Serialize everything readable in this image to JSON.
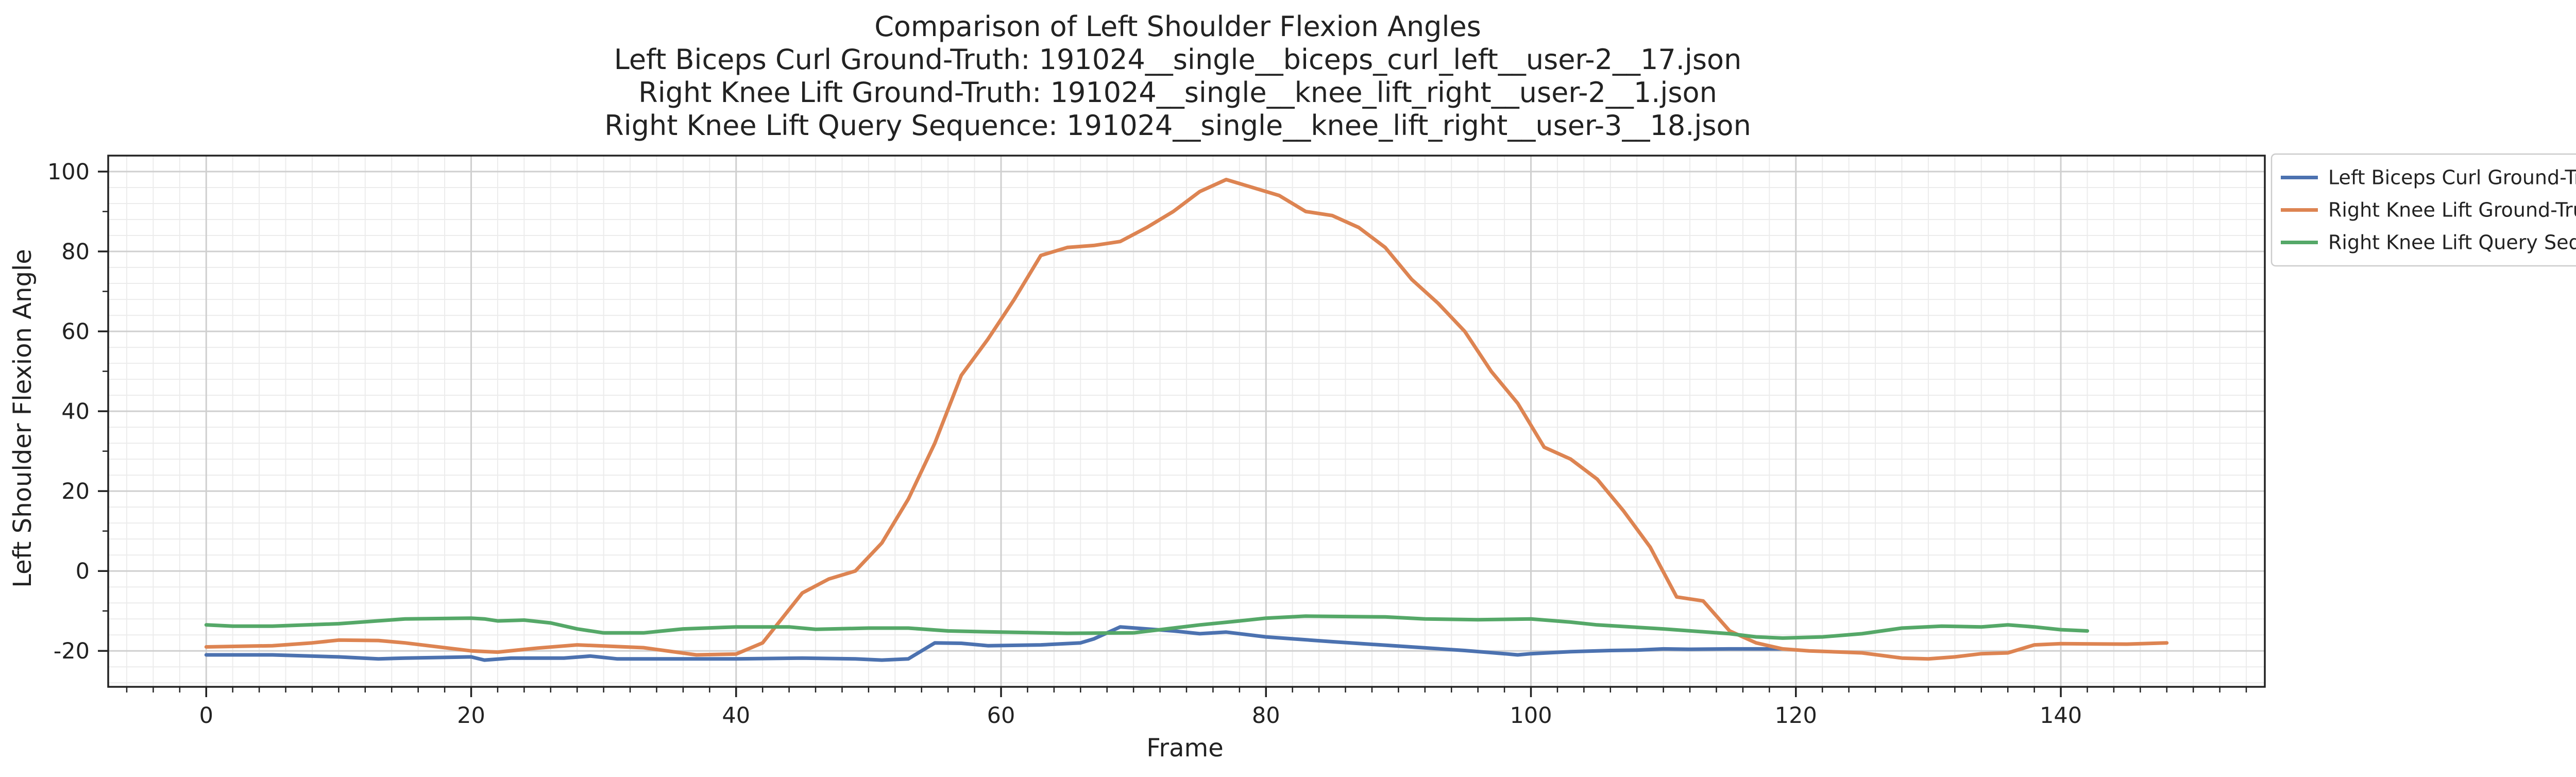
{
  "chart_data": {
    "type": "line",
    "title": "Comparison of Left Shoulder Flexion Angles",
    "subtitles": [
      "Left Biceps Curl Ground-Truth: 191024__single__biceps_curl_left__user-2__17.json",
      "Right Knee Lift Ground-Truth: 191024__single__knee_lift_right__user-2__1.json",
      "Right Knee Lift Query Sequence: 191024__single__knee_lift_right__user-3__18.json"
    ],
    "xlabel": "Frame",
    "ylabel": "Left Shoulder Flexion Angle",
    "xlim": [
      -7.4,
      155.4
    ],
    "ylim": [
      -29,
      104
    ],
    "xticks": [
      0,
      20,
      40,
      60,
      80,
      100,
      120,
      140
    ],
    "yticks": [
      -20,
      0,
      20,
      40,
      60,
      80,
      100
    ],
    "grid": true,
    "legend_position": "outside upper right",
    "series": [
      {
        "name": "Left Biceps Curl Ground-Truth",
        "color": "#4c72b0",
        "points": [
          [
            0,
            -21
          ],
          [
            5,
            -21
          ],
          [
            10,
            -21.5
          ],
          [
            13,
            -22
          ],
          [
            15,
            -21.8
          ],
          [
            20,
            -21.5
          ],
          [
            21,
            -22.3
          ],
          [
            23,
            -21.8
          ],
          [
            27,
            -21.8
          ],
          [
            29,
            -21.3
          ],
          [
            31,
            -22
          ],
          [
            35,
            -22
          ],
          [
            40,
            -22
          ],
          [
            45,
            -21.8
          ],
          [
            49,
            -22
          ],
          [
            51,
            -22.3
          ],
          [
            53,
            -22
          ],
          [
            55,
            -18
          ],
          [
            57,
            -18.1
          ],
          [
            59,
            -18.7
          ],
          [
            63,
            -18.5
          ],
          [
            66,
            -18
          ],
          [
            67,
            -17
          ],
          [
            69,
            -14
          ],
          [
            71,
            -14.5
          ],
          [
            73,
            -15
          ],
          [
            75,
            -15.7
          ],
          [
            77,
            -15.3
          ],
          [
            80,
            -16.5
          ],
          [
            85,
            -17.7
          ],
          [
            90,
            -18.8
          ],
          [
            95,
            -19.9
          ],
          [
            98,
            -20.7
          ],
          [
            99,
            -21
          ],
          [
            100,
            -20.7
          ],
          [
            103,
            -20.2
          ],
          [
            106,
            -19.9
          ],
          [
            108,
            -19.8
          ],
          [
            110,
            -19.5
          ],
          [
            112,
            -19.6
          ],
          [
            115,
            -19.5
          ],
          [
            119,
            -19.5
          ]
        ]
      },
      {
        "name": "Right Knee Lift Ground-Truth",
        "color": "#dd8452",
        "points": [
          [
            0,
            -19
          ],
          [
            5,
            -18.7
          ],
          [
            8,
            -18
          ],
          [
            10,
            -17.3
          ],
          [
            13,
            -17.4
          ],
          [
            15,
            -18
          ],
          [
            20,
            -20
          ],
          [
            22,
            -20.3
          ],
          [
            25,
            -19.3
          ],
          [
            28,
            -18.5
          ],
          [
            33,
            -19.2
          ],
          [
            37,
            -21
          ],
          [
            40,
            -20.8
          ],
          [
            42,
            -18
          ],
          [
            45,
            -5.5
          ],
          [
            47,
            -2
          ],
          [
            49,
            0
          ],
          [
            51,
            7
          ],
          [
            53,
            18
          ],
          [
            55,
            32
          ],
          [
            57,
            49
          ],
          [
            59,
            58
          ],
          [
            61,
            68
          ],
          [
            63,
            79
          ],
          [
            65,
            81
          ],
          [
            67,
            81.5
          ],
          [
            69,
            82.5
          ],
          [
            71,
            86
          ],
          [
            73,
            90
          ],
          [
            75,
            95
          ],
          [
            77,
            98
          ],
          [
            79,
            96
          ],
          [
            81,
            94
          ],
          [
            83,
            90
          ],
          [
            85,
            89
          ],
          [
            87,
            86
          ],
          [
            89,
            81
          ],
          [
            91,
            73
          ],
          [
            93,
            67
          ],
          [
            95,
            60
          ],
          [
            97,
            50
          ],
          [
            99,
            42
          ],
          [
            101,
            31
          ],
          [
            103,
            28
          ],
          [
            105,
            23
          ],
          [
            107,
            15
          ],
          [
            109,
            6
          ],
          [
            111,
            -6.5
          ],
          [
            113,
            -7.5
          ],
          [
            115,
            -15
          ],
          [
            117,
            -18
          ],
          [
            119,
            -19.5
          ],
          [
            121,
            -20
          ],
          [
            125,
            -20.5
          ],
          [
            128,
            -21.8
          ],
          [
            130,
            -22
          ],
          [
            132,
            -21.5
          ],
          [
            134,
            -20.7
          ],
          [
            136,
            -20.5
          ],
          [
            138,
            -18.5
          ],
          [
            140,
            -18.2
          ],
          [
            145,
            -18.3
          ],
          [
            148,
            -18
          ]
        ]
      },
      {
        "name": "Right Knee Lift Query Sequence",
        "color": "#55a868",
        "points": [
          [
            0,
            -13.5
          ],
          [
            2,
            -13.8
          ],
          [
            5,
            -13.8
          ],
          [
            10,
            -13.2
          ],
          [
            15,
            -12
          ],
          [
            20,
            -11.8
          ],
          [
            21,
            -12
          ],
          [
            22,
            -12.5
          ],
          [
            24,
            -12.3
          ],
          [
            26,
            -13
          ],
          [
            28,
            -14.5
          ],
          [
            30,
            -15.5
          ],
          [
            33,
            -15.5
          ],
          [
            36,
            -14.5
          ],
          [
            40,
            -14
          ],
          [
            44,
            -14
          ],
          [
            46,
            -14.6
          ],
          [
            50,
            -14.3
          ],
          [
            53,
            -14.3
          ],
          [
            56,
            -15
          ],
          [
            60,
            -15.3
          ],
          [
            65,
            -15.6
          ],
          [
            70,
            -15.5
          ],
          [
            75,
            -13.5
          ],
          [
            78,
            -12.5
          ],
          [
            80,
            -11.8
          ],
          [
            83,
            -11.3
          ],
          [
            89,
            -11.5
          ],
          [
            92,
            -12
          ],
          [
            96,
            -12.2
          ],
          [
            100,
            -12
          ],
          [
            103,
            -12.8
          ],
          [
            105,
            -13.5
          ],
          [
            110,
            -14.5
          ],
          [
            115,
            -15.7
          ],
          [
            117,
            -16.5
          ],
          [
            119,
            -16.8
          ],
          [
            122,
            -16.5
          ],
          [
            125,
            -15.7
          ],
          [
            128,
            -14.3
          ],
          [
            131,
            -13.8
          ],
          [
            134,
            -14
          ],
          [
            136,
            -13.5
          ],
          [
            138,
            -14
          ],
          [
            140,
            -14.7
          ],
          [
            142,
            -15
          ]
        ]
      }
    ]
  }
}
